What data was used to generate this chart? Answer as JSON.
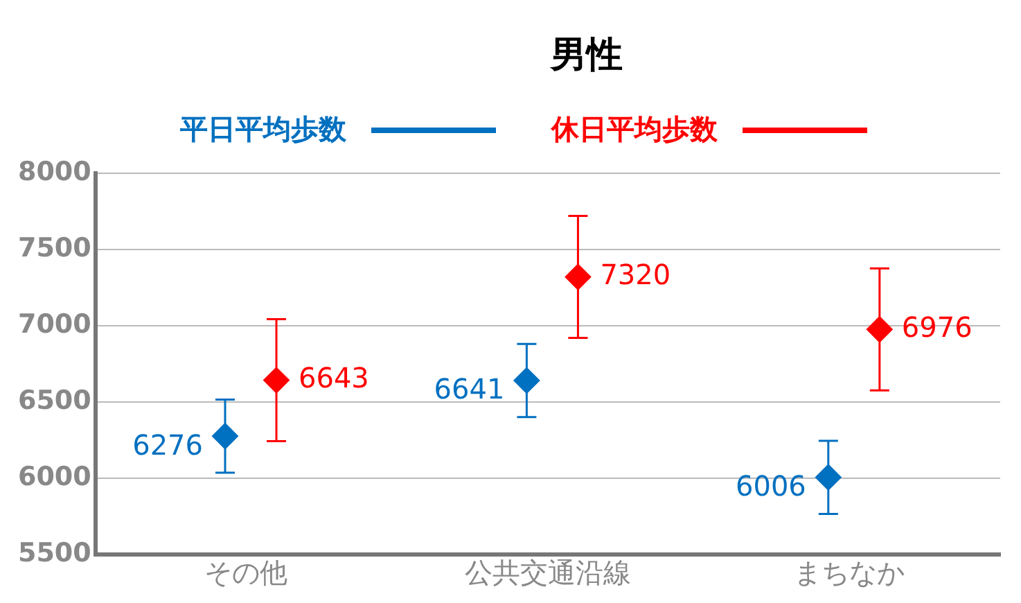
{
  "chart_data": {
    "type": "scatter",
    "title": "男性",
    "categories": [
      "その他",
      "公共交通沿線",
      "まちなか"
    ],
    "series": [
      {
        "name": "平日平均歩数",
        "color": "#0070c0",
        "values": [
          6276,
          6641,
          6006
        ],
        "errors": [
          240,
          240,
          240
        ]
      },
      {
        "name": "休日平均歩数",
        "color": "#ff0000",
        "values": [
          6643,
          7320,
          6976
        ],
        "errors": [
          400,
          400,
          400
        ]
      }
    ],
    "ylim": [
      5500,
      8000
    ],
    "yticks": [
      5500,
      6000,
      6500,
      7000,
      7500,
      8000
    ],
    "grid": "y",
    "legend": "top",
    "marker": "diamond",
    "data_labels": true
  }
}
